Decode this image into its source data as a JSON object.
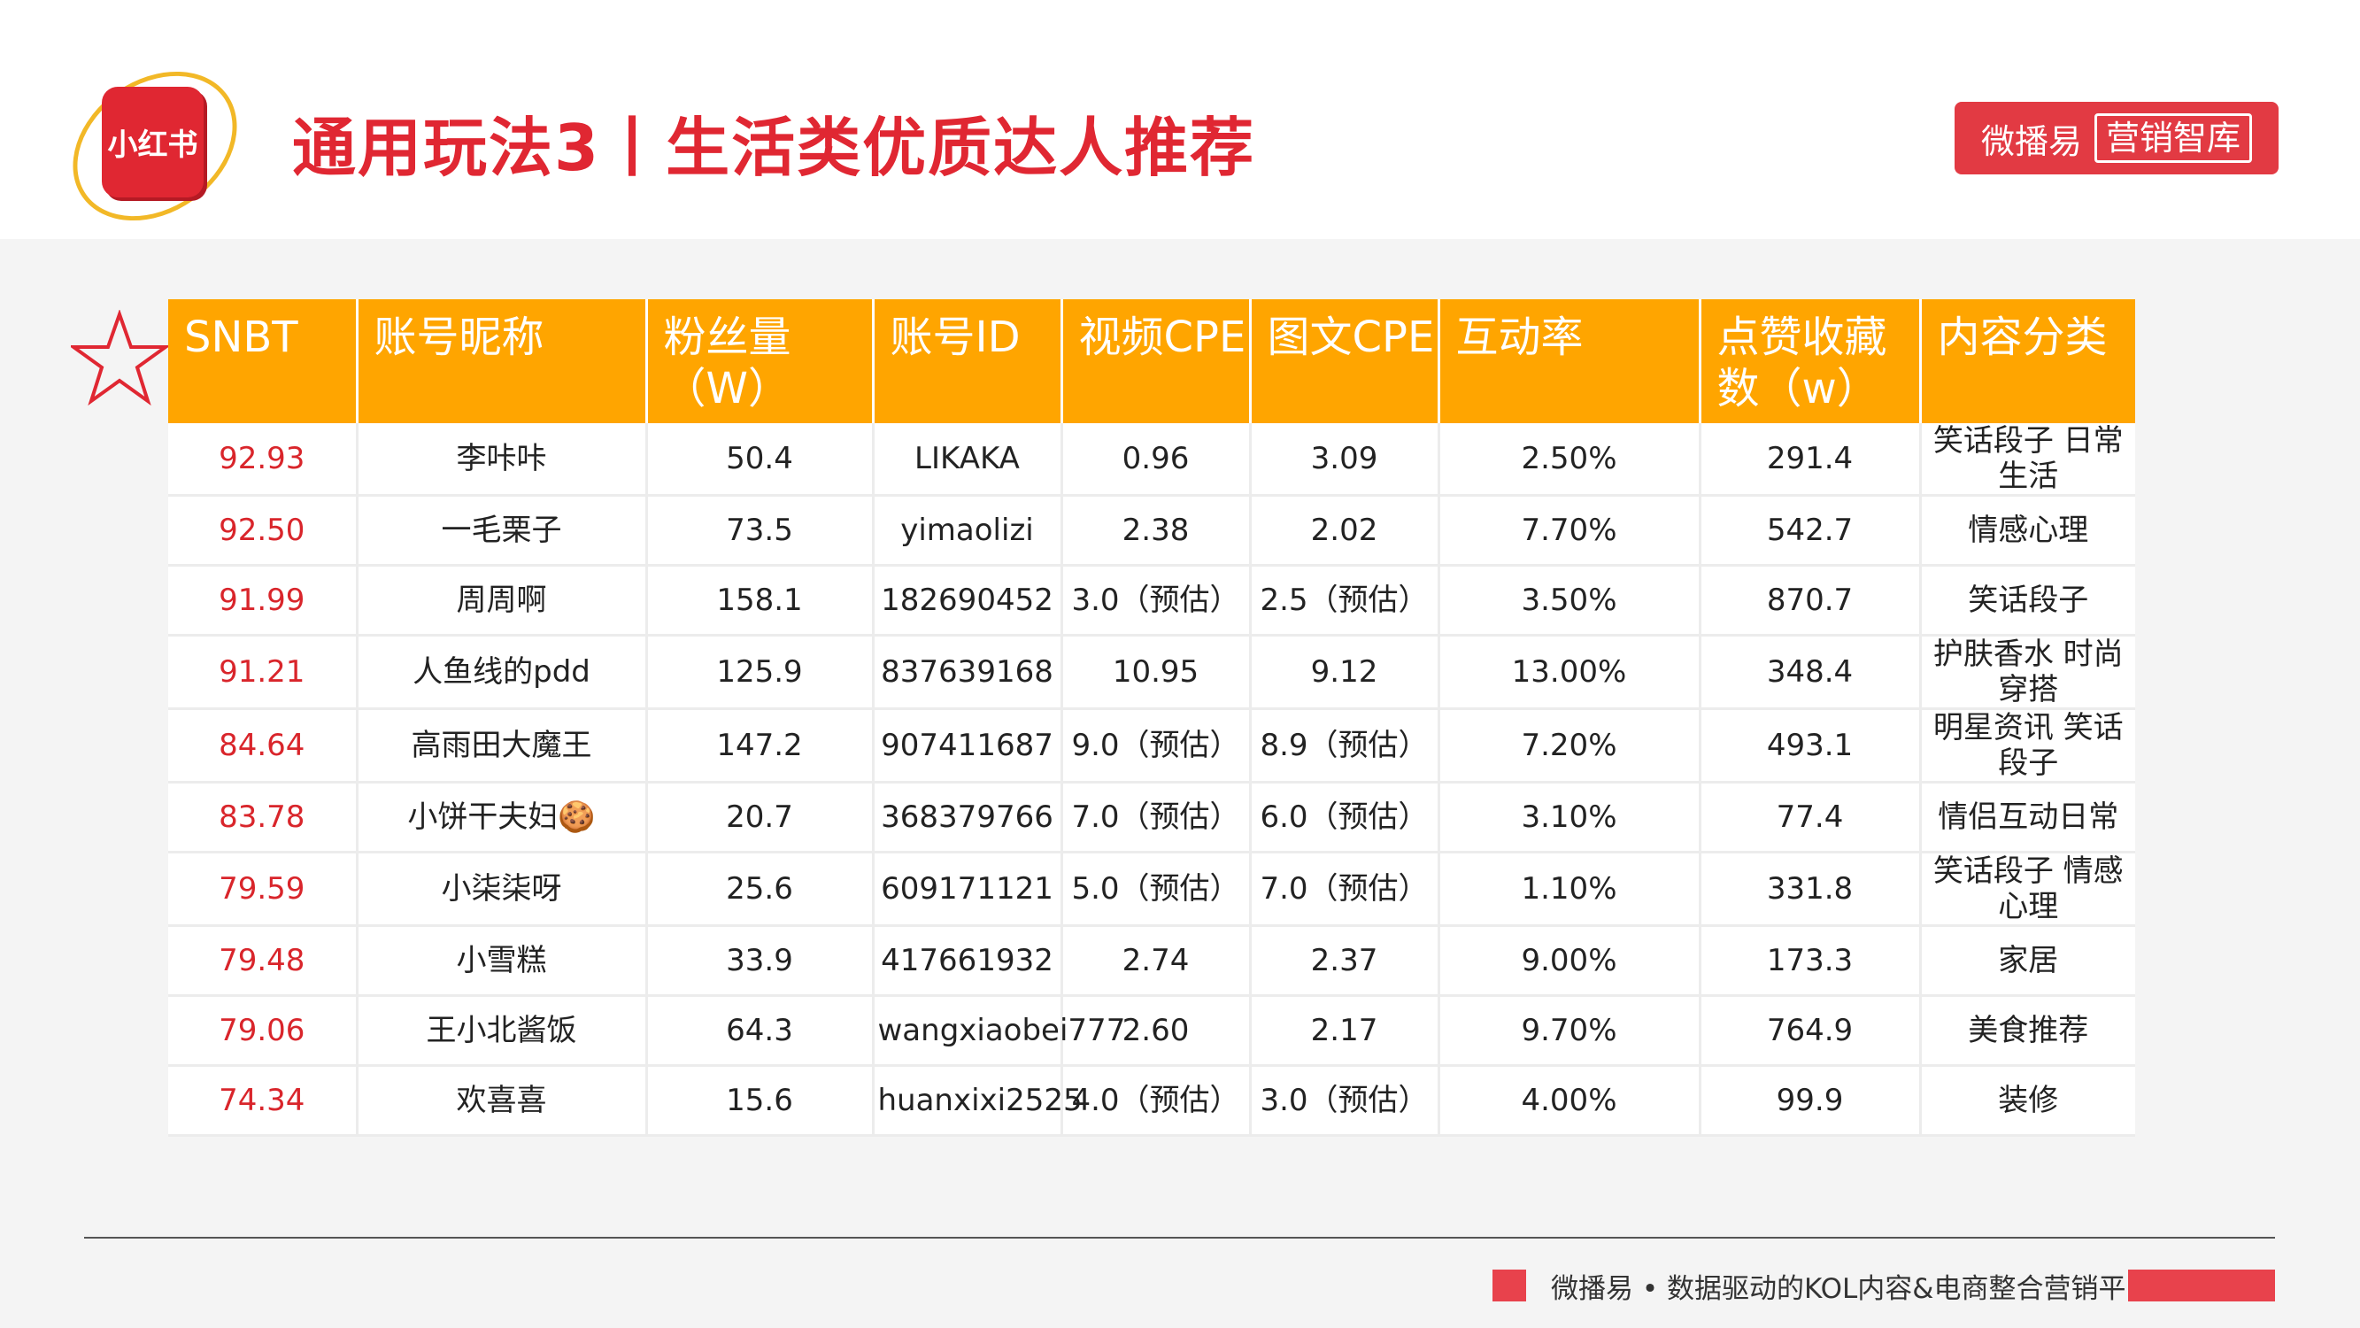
{
  "header": {
    "logo_text": "小红书",
    "title": "通用玩法3丨生活类优质达人推荐",
    "brand_a": "微播易",
    "brand_b": "营销智库"
  },
  "table": {
    "columns": [
      "SNBT",
      "账号昵称",
      "粉丝量（W）",
      "账号ID",
      "视频CPE",
      "图文CPE",
      "互动率",
      "点赞收藏数（w）",
      "内容分类"
    ],
    "rows": [
      [
        "92.93",
        "李咔咔",
        "50.4",
        "LIKAKA",
        "0.96",
        "3.09",
        "2.50%",
        "291.4",
        "笑话段子 日常生活"
      ],
      [
        "92.50",
        "一毛栗子",
        "73.5",
        "yimaolizi",
        "2.38",
        "2.02",
        "7.70%",
        "542.7",
        "情感心理"
      ],
      [
        "91.99",
        "周周啊",
        "158.1",
        "182690452",
        "3.0（预估）",
        "2.5（预估）",
        "3.50%",
        "870.7",
        "笑话段子"
      ],
      [
        "91.21",
        "人鱼线的pdd",
        "125.9",
        "837639168",
        "10.95",
        "9.12",
        "13.00%",
        "348.4",
        "护肤香水 时尚穿搭"
      ],
      [
        "84.64",
        "高雨田大魔王",
        "147.2",
        "907411687",
        "9.0（预估）",
        "8.9（预估）",
        "7.20%",
        "493.1",
        "明星资讯 笑话段子"
      ],
      [
        "83.78",
        "小饼干夫妇🍪",
        "20.7",
        "368379766",
        "7.0（预估）",
        "6.0（预估）",
        "3.10%",
        "77.4",
        "情侣互动日常"
      ],
      [
        "79.59",
        "小柒柒呀",
        "25.6",
        "609171121",
        "5.0（预估）",
        "7.0（预估）",
        "1.10%",
        "331.8",
        "笑话段子 情感心理"
      ],
      [
        "79.48",
        "小雪糕",
        "33.9",
        "417661932",
        "2.74",
        "2.37",
        "9.00%",
        "173.3",
        "家居"
      ],
      [
        "79.06",
        "王小北酱饭",
        "64.3",
        "wangxiaobei777",
        "2.60",
        "2.17",
        "9.70%",
        "764.9",
        "美食推荐"
      ],
      [
        "74.34",
        "欢喜喜",
        "15.6",
        "huanxixi2525",
        "4.0（预估）",
        "3.0（预估）",
        "4.00%",
        "99.9",
        "装修"
      ]
    ]
  },
  "footer": {
    "text": "微播易 • 数据驱动的KOL内容&电商整合营销平台"
  }
}
